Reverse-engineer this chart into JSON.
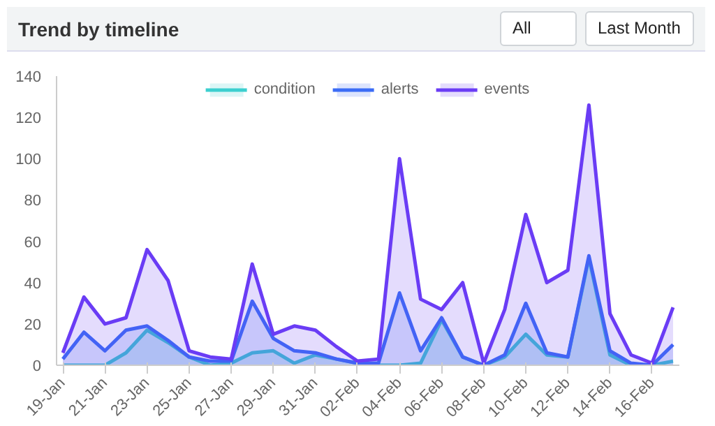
{
  "chart_data": {
    "type": "area",
    "title": "Trend by timeline",
    "annotations": [
      "All",
      "Last Month"
    ],
    "categories": [
      "19-Jan",
      null,
      "21-Jan",
      null,
      "23-Jan",
      null,
      "25-Jan",
      null,
      "27-Jan",
      null,
      "29-Jan",
      null,
      "31-Jan",
      null,
      "02-Feb",
      null,
      "04-Feb",
      null,
      "06-Feb",
      null,
      "08-Feb",
      null,
      "10-Feb",
      null,
      "12-Feb",
      null,
      "14-Feb",
      null,
      "16-Feb",
      null
    ],
    "series": [
      {
        "name": "condition",
        "color": "#3ccfcf",
        "values": [
          0,
          0,
          0,
          6,
          17,
          11,
          4,
          0,
          1,
          6,
          7,
          1,
          5,
          3,
          1,
          0,
          0,
          1,
          22,
          4,
          0,
          4,
          15,
          5,
          4,
          52,
          5,
          0,
          0,
          2
        ]
      },
      {
        "name": "alerts",
        "color": "#3b6cf6",
        "values": [
          3,
          16,
          7,
          17,
          19,
          12,
          4,
          2,
          2,
          31,
          13,
          7,
          6,
          3,
          1,
          1,
          35,
          7,
          23,
          4,
          0,
          5,
          30,
          6,
          4,
          53,
          7,
          1,
          0,
          10
        ]
      },
      {
        "name": "events",
        "color": "#6a3cf5",
        "values": [
          6,
          33,
          20,
          23,
          56,
          41,
          7,
          4,
          3,
          49,
          15,
          19,
          17,
          9,
          2,
          3,
          100,
          32,
          27,
          40,
          1,
          27,
          73,
          40,
          46,
          126,
          25,
          5,
          1,
          28
        ]
      }
    ],
    "ylim": [
      0,
      140
    ],
    "yticks": [
      0,
      20,
      40,
      60,
      80,
      100,
      120,
      140
    ],
    "legend": "top"
  }
}
